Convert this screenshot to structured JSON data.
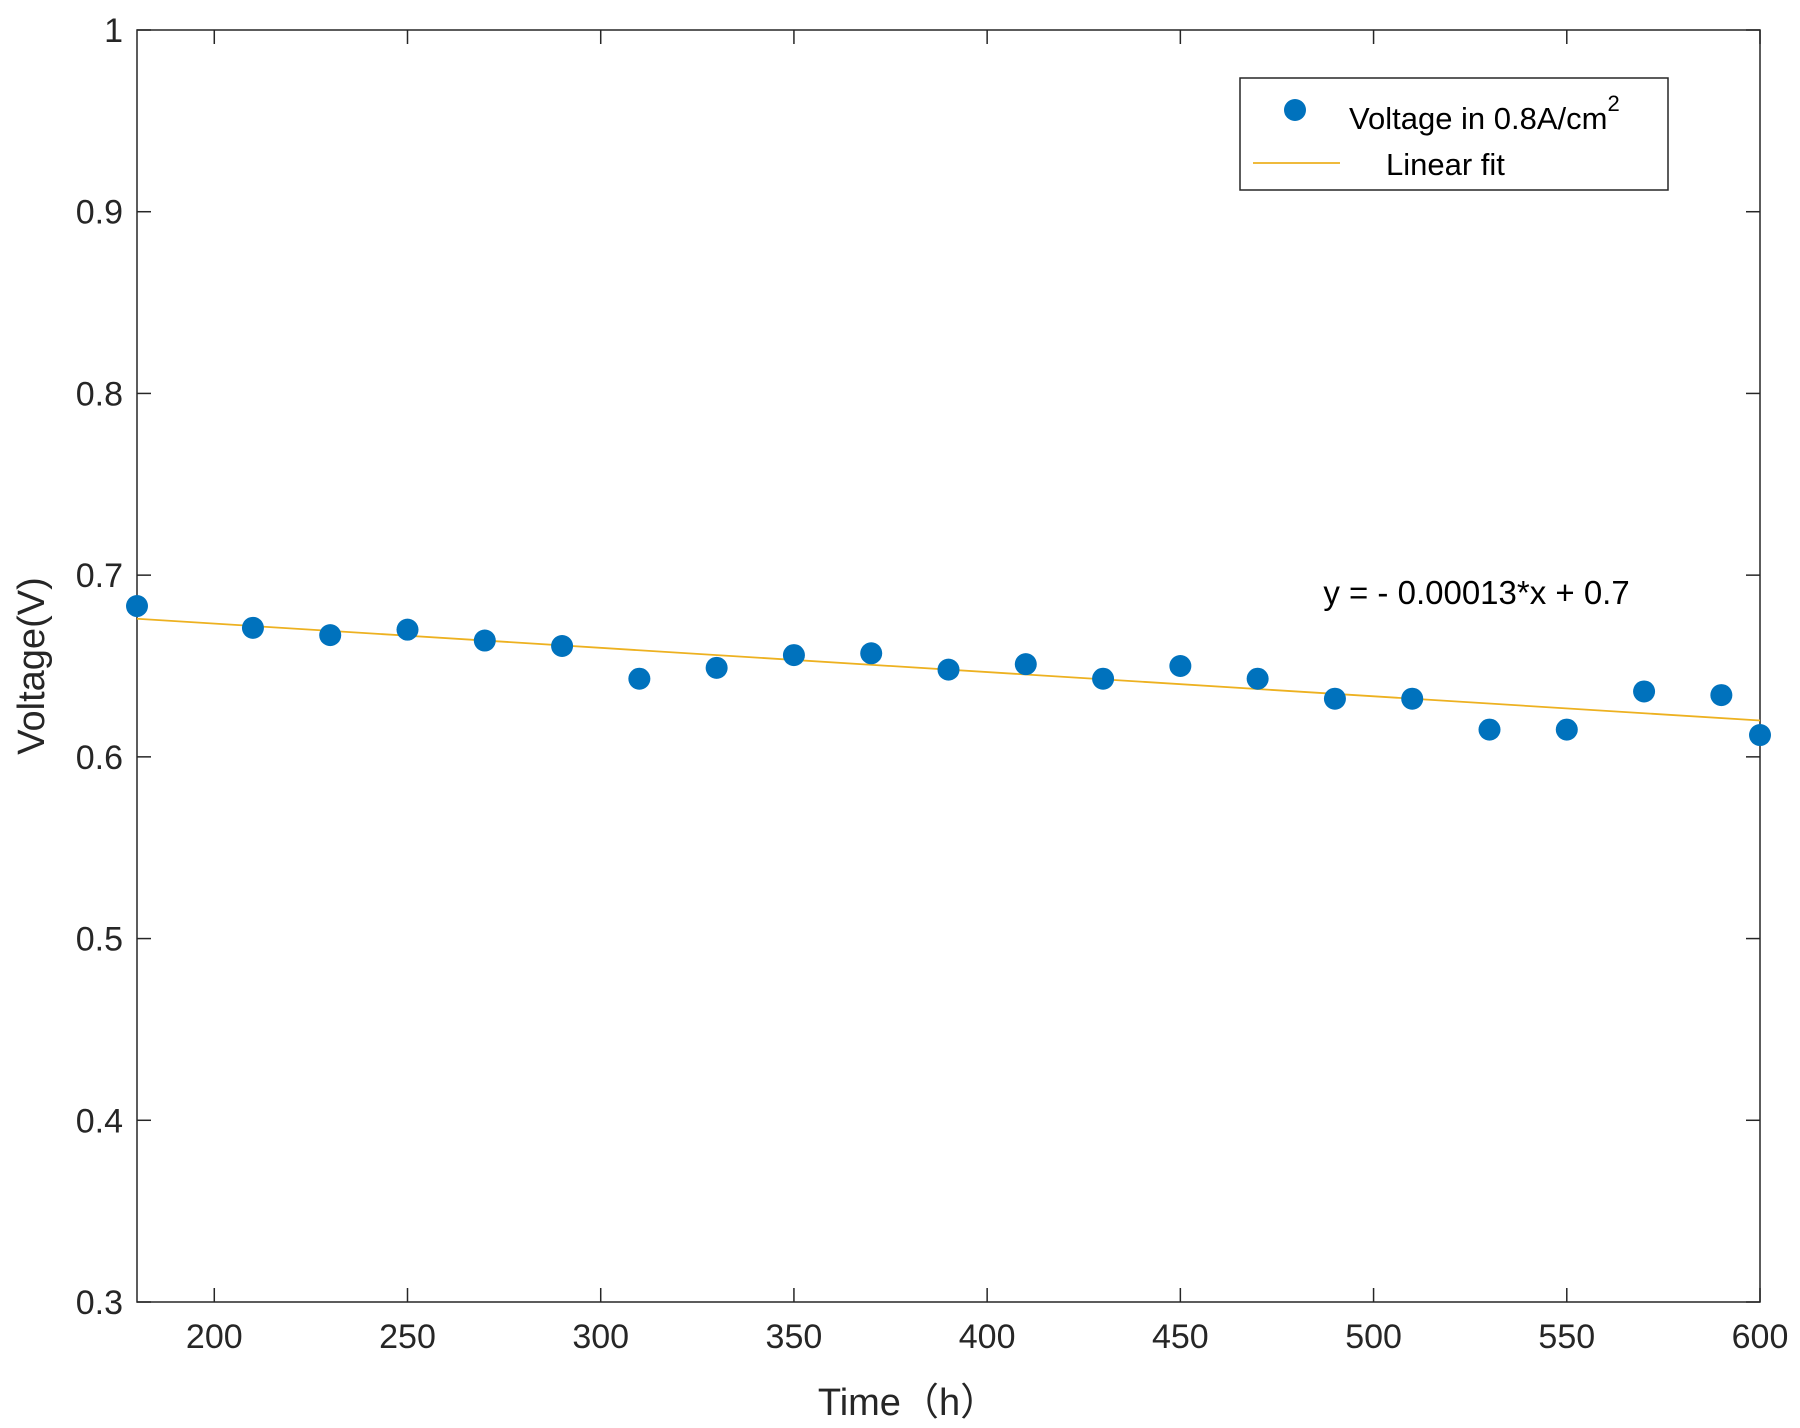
{
  "chart_data": {
    "type": "scatter",
    "title": "",
    "xlabel": "Time（h）",
    "ylabel": "Voltage(V)",
    "xlim": [
      180,
      600
    ],
    "ylim": [
      0.3,
      1.0
    ],
    "xticks": [
      200,
      250,
      300,
      350,
      400,
      450,
      500,
      550,
      600
    ],
    "yticks": [
      0.3,
      0.4,
      0.5,
      0.6,
      0.7,
      0.8,
      0.9,
      1.0
    ],
    "xtick_labels": [
      "200",
      "250",
      "300",
      "350",
      "400",
      "450",
      "500",
      "550",
      "600"
    ],
    "ytick_labels": [
      "0.3",
      "0.4",
      "0.5",
      "0.6",
      "0.7",
      "0.8",
      "0.9",
      "1"
    ],
    "grid": false,
    "legend_position": "top-right",
    "series": [
      {
        "name": "Voltage in 0.8A/cm",
        "name_superscript": "2",
        "kind": "scatter",
        "color": "#0072BD",
        "x": [
          180,
          210,
          230,
          250,
          270,
          290,
          310,
          330,
          350,
          370,
          390,
          410,
          430,
          450,
          470,
          490,
          510,
          530,
          550,
          570,
          590,
          600
        ],
        "y": [
          0.683,
          0.671,
          0.667,
          0.67,
          0.664,
          0.661,
          0.643,
          0.649,
          0.656,
          0.657,
          0.648,
          0.651,
          0.643,
          0.65,
          0.643,
          0.632,
          0.632,
          0.615,
          0.615,
          0.636,
          0.634,
          0.612
        ]
      },
      {
        "name": "Linear fit",
        "kind": "line",
        "color": "#EDB120",
        "x": [
          180,
          600
        ],
        "y": [
          0.676,
          0.62
        ]
      }
    ],
    "annotations": [
      {
        "text": "y = - 0.00013*x + 0.7",
        "x": 487,
        "y": 0.684
      }
    ]
  }
}
